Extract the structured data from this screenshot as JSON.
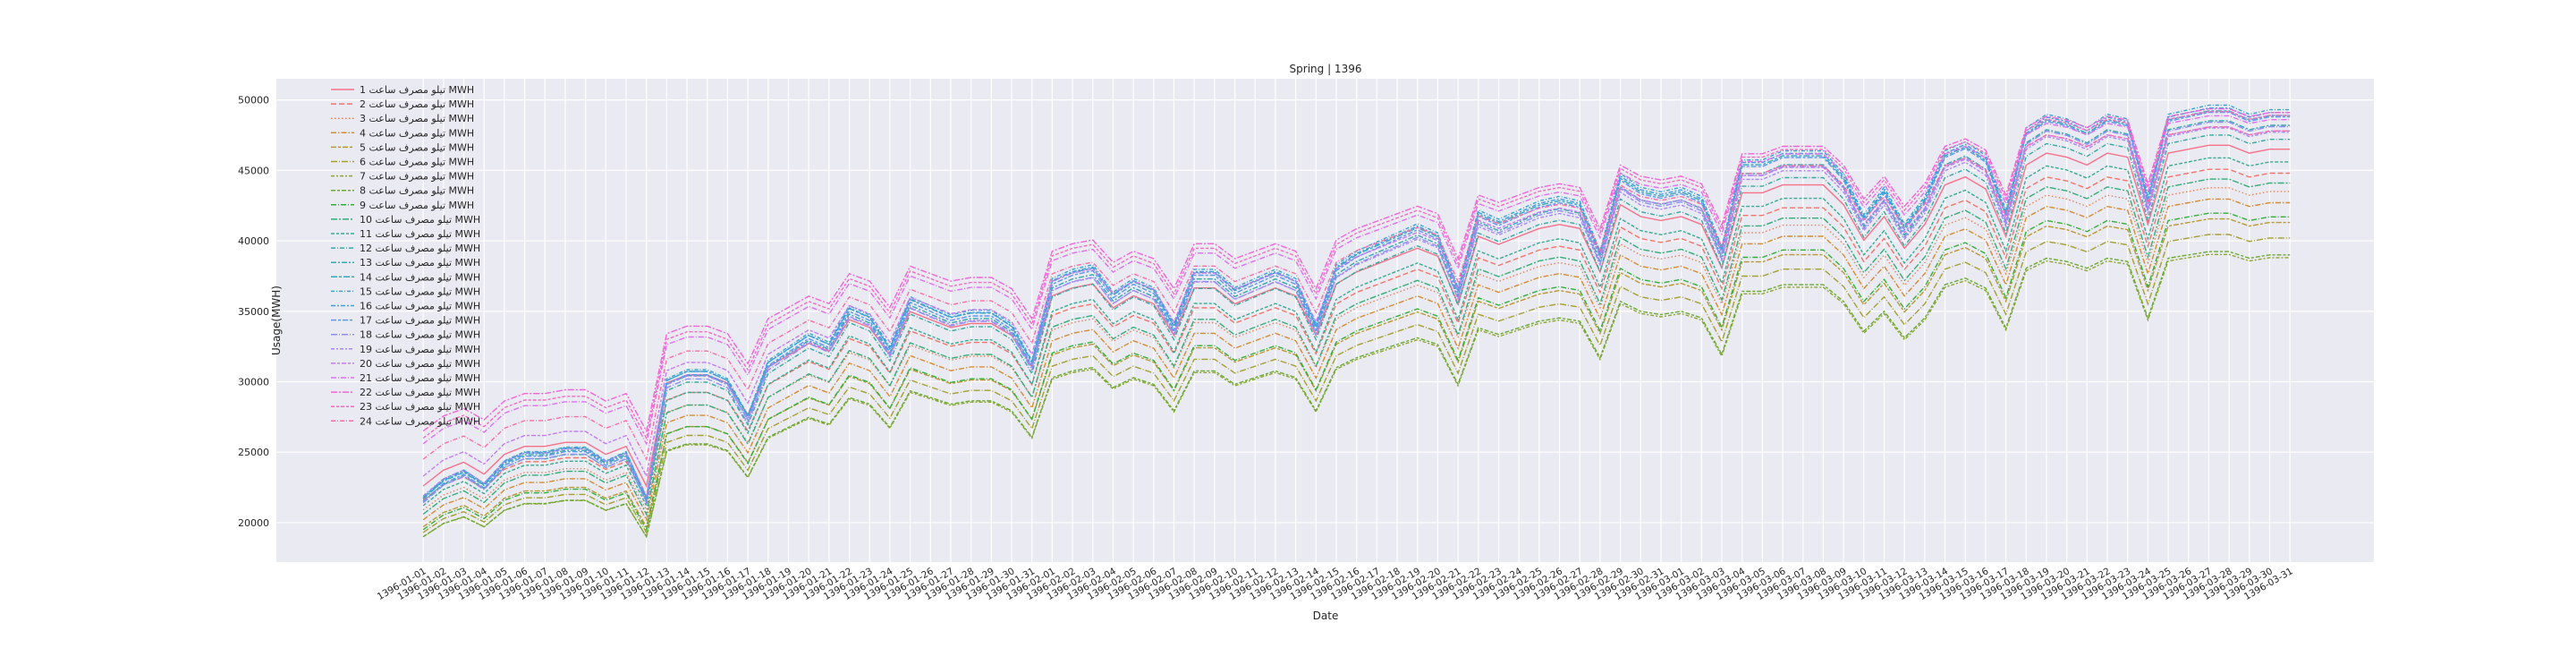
{
  "chart_data": {
    "type": "line",
    "title": "Spring | 1396",
    "xlabel": "Date",
    "ylabel": "Usage(MWH)",
    "ylim": [
      17200,
      51500
    ],
    "yticks": [
      20000,
      25000,
      30000,
      35000,
      40000,
      45000,
      50000
    ],
    "grid": true,
    "legend_position": "top-left",
    "background": "#eaeaf2",
    "grid_color": "#ffffff",
    "x": [
      "1396-01-01",
      "1396-01-02",
      "1396-01-03",
      "1396-01-04",
      "1396-01-05",
      "1396-01-06",
      "1396-01-07",
      "1396-01-08",
      "1396-01-09",
      "1396-01-10",
      "1396-01-11",
      "1396-01-12",
      "1396-01-13",
      "1396-01-14",
      "1396-01-15",
      "1396-01-16",
      "1396-01-17",
      "1396-01-18",
      "1396-01-19",
      "1396-01-20",
      "1396-01-21",
      "1396-01-22",
      "1396-01-23",
      "1396-01-24",
      "1396-01-25",
      "1396-01-26",
      "1396-01-27",
      "1396-01-28",
      "1396-01-29",
      "1396-01-30",
      "1396-01-31",
      "1396-02-01",
      "1396-02-02",
      "1396-02-03",
      "1396-02-04",
      "1396-02-05",
      "1396-02-06",
      "1396-02-07",
      "1396-02-08",
      "1396-02-09",
      "1396-02-10",
      "1396-02-11",
      "1396-02-12",
      "1396-02-13",
      "1396-02-14",
      "1396-02-15",
      "1396-02-16",
      "1396-02-17",
      "1396-02-18",
      "1396-02-19",
      "1396-02-20",
      "1396-02-21",
      "1396-02-22",
      "1396-02-23",
      "1396-02-24",
      "1396-02-25",
      "1396-02-26",
      "1396-02-27",
      "1396-02-28",
      "1396-02-29",
      "1396-02-30",
      "1396-02-31",
      "1396-03-01",
      "1396-03-02",
      "1396-03-03",
      "1396-03-04",
      "1396-03-05",
      "1396-03-06",
      "1396-03-07",
      "1396-03-08",
      "1396-03-09",
      "1396-03-10",
      "1396-03-11",
      "1396-03-12",
      "1396-03-13",
      "1396-03-14",
      "1396-03-15",
      "1396-03-16",
      "1396-03-17",
      "1396-03-18",
      "1396-03-19",
      "1396-03-20",
      "1396-03-21",
      "1396-03-22",
      "1396-03-23",
      "1396-03-24",
      "1396-03-25",
      "1396-03-26",
      "1396-03-27",
      "1396-03-28",
      "1396-03-29",
      "1396-03-30",
      "1396-03-31"
    ],
    "base_profile": [
      0.12,
      0.16,
      0.18,
      0.15,
      0.2,
      0.22,
      0.22,
      0.23,
      0.23,
      0.2,
      0.22,
      0.12,
      0.38,
      0.4,
      0.4,
      0.38,
      0.3,
      0.42,
      0.45,
      0.48,
      0.46,
      0.54,
      0.52,
      0.45,
      0.56,
      0.54,
      0.52,
      0.53,
      0.53,
      0.5,
      0.42,
      0.6,
      0.62,
      0.63,
      0.57,
      0.6,
      0.58,
      0.5,
      0.62,
      0.62,
      0.58,
      0.6,
      0.62,
      0.6,
      0.5,
      0.63,
      0.66,
      0.68,
      0.7,
      0.72,
      0.7,
      0.58,
      0.75,
      0.73,
      0.75,
      0.77,
      0.78,
      0.77,
      0.66,
      0.83,
      0.8,
      0.79,
      0.8,
      0.78,
      0.67,
      0.86,
      0.86,
      0.88,
      0.88,
      0.88,
      0.83,
      0.74,
      0.8,
      0.72,
      0.78,
      0.88,
      0.9,
      0.87,
      0.75,
      0.93,
      0.96,
      0.95,
      0.93,
      0.96,
      0.95,
      0.78,
      0.96,
      0.97,
      0.98,
      0.98,
      0.96,
      0.97,
      0.97
    ],
    "series": [
      {
        "name": "تیلو مصرف ساعت 1 MWH",
        "color": "#f77189",
        "dash": "solid",
        "start": 22600,
        "end": 46500
      },
      {
        "name": "تیلو مصرف ساعت 2 MWH",
        "color": "#f3746a",
        "dash": "dashed",
        "start": 21600,
        "end": 44800
      },
      {
        "name": "تیلو مصرف ساعت 3 MWH",
        "color": "#e8845c",
        "dash": "dotted",
        "start": 20900,
        "end": 43500
      },
      {
        "name": "تیلو مصرف ساعت 4 MWH",
        "color": "#d58c32",
        "dash": "dashdot",
        "start": 20200,
        "end": 42700
      },
      {
        "name": "تیلو مصرف ساعت 5 MWH",
        "color": "#bb9832",
        "dash": "dashdot2",
        "start": 19700,
        "end": 41300
      },
      {
        "name": "تیلو مصرف ساعت 6 MWH",
        "color": "#a4a031",
        "dash": "dashdot3",
        "start": 19300,
        "end": 40200
      },
      {
        "name": "تیلو مصرف ساعت 7 MWH",
        "color": "#8ea631",
        "dash": "dashdot4",
        "start": 19000,
        "end": 38800
      },
      {
        "name": "تیلو مصرف ساعت 8 MWH",
        "color": "#6aab31",
        "dash": "dashdot5",
        "start": 19000,
        "end": 39000
      },
      {
        "name": "تیلو مصرف ساعت 9 MWH",
        "color": "#33b039",
        "dash": "dashdot6",
        "start": 19500,
        "end": 41700
      },
      {
        "name": "تیلو مصرف ساعت 10 MWH",
        "color": "#34ad78",
        "dash": "dashdot7",
        "start": 20600,
        "end": 44100
      },
      {
        "name": "تیلو مصرف ساعت 11 MWH",
        "color": "#35ab8f",
        "dash": "dashdot8",
        "start": 21200,
        "end": 45600
      },
      {
        "name": "تیلو مصرف ساعت 12 MWH",
        "color": "#36aa9f",
        "dash": "dashdot9",
        "start": 21500,
        "end": 47200
      },
      {
        "name": "تیلو مصرف ساعت 13 MWH",
        "color": "#37a8ae",
        "dash": "dashdot10",
        "start": 21700,
        "end": 48200
      },
      {
        "name": "تیلو مصرف ساعت 14 MWH",
        "color": "#38a6bc",
        "dash": "dashdot11",
        "start": 21800,
        "end": 48900
      },
      {
        "name": "تیلو مصرف ساعت 15 MWH",
        "color": "#3aa4cc",
        "dash": "dashdot12",
        "start": 21800,
        "end": 49300
      },
      {
        "name": "تیلو مصرف ساعت 16 MWH",
        "color": "#3ca0e0",
        "dash": "dashdot13",
        "start": 21700,
        "end": 49100
      },
      {
        "name": "تیلو مصرف ساعت 17 MWH",
        "color": "#5d98f0",
        "dash": "dashdot14",
        "start": 21500,
        "end": 48800
      },
      {
        "name": "تیلو مصرف ساعت 18 MWH",
        "color": "#8e8ff4",
        "dash": "dashdot15",
        "start": 21400,
        "end": 48100
      },
      {
        "name": "تیلو مصرف ساعت 19 MWH",
        "color": "#a888f4",
        "dash": "dashdot16",
        "start": 21900,
        "end": 47700
      },
      {
        "name": "تیلو مصرف ساعت 20 MWH",
        "color": "#c27cf4",
        "dash": "dashdot17",
        "start": 23300,
        "end": 47800
      },
      {
        "name": "تیلو مصرف ساعت 21 MWH",
        "color": "#e06ef2",
        "dash": "dashdot18",
        "start": 25600,
        "end": 48600
      },
      {
        "name": "تیلو مصرف ساعت 22 MWH",
        "color": "#f265d9",
        "dash": "dashdot19",
        "start": 26500,
        "end": 49100
      },
      {
        "name": "تیلو مصرف ساعت 23 MWH",
        "color": "#f66bbf",
        "dash": "dashdot20",
        "start": 26000,
        "end": 48900
      },
      {
        "name": "تیلو مصرف ساعت 24 MWH",
        "color": "#f76fa6",
        "dash": "dashdot21",
        "start": 24500,
        "end": 47800
      }
    ]
  }
}
